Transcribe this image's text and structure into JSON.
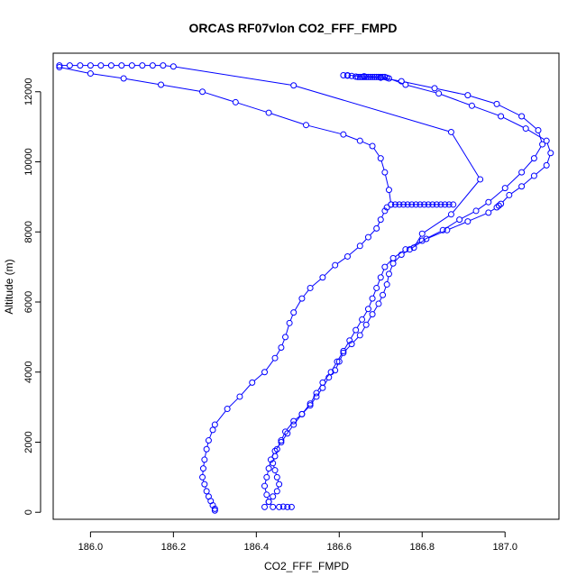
{
  "chart_data": {
    "type": "scatter",
    "title": "ORCAS RF07vlon CO2_FFF_FMPD",
    "xlabel": "CO2_FFF_FMPD",
    "ylabel": "Altitude (m)",
    "xlim": [
      185.91,
      187.13
    ],
    "ylim": [
      -200,
      13100
    ],
    "xticks": [
      186.0,
      186.2,
      186.4,
      186.6,
      186.8,
      187.0
    ],
    "xtick_labels": [
      "186.0",
      "186.2",
      "186.4",
      "186.6",
      "186.8",
      "187.0"
    ],
    "yticks": [
      0,
      2000,
      4000,
      6000,
      8000,
      10000,
      12000
    ],
    "ytick_labels": [
      "0",
      "2000",
      "4000",
      "6000",
      "8000",
      "10000",
      "12000"
    ],
    "grid": false,
    "marker": "open-circle",
    "color": "#0000ff",
    "series": [
      {
        "name": "profile-1",
        "line": true,
        "points": [
          [
            186.3,
            50
          ],
          [
            186.3,
            100
          ],
          [
            186.295,
            200
          ],
          [
            186.29,
            320
          ],
          [
            186.285,
            450
          ],
          [
            186.28,
            600
          ],
          [
            186.275,
            800
          ],
          [
            186.27,
            1000
          ],
          [
            186.272,
            1250
          ],
          [
            186.275,
            1500
          ],
          [
            186.28,
            1800
          ],
          [
            186.285,
            2050
          ],
          [
            186.295,
            2350
          ],
          [
            186.3,
            2500
          ],
          [
            186.33,
            2950
          ],
          [
            186.36,
            3300
          ],
          [
            186.39,
            3700
          ],
          [
            186.42,
            4000
          ],
          [
            186.445,
            4400
          ],
          [
            186.46,
            4700
          ],
          [
            186.47,
            5000
          ],
          [
            186.48,
            5400
          ],
          [
            186.49,
            5700
          ],
          [
            186.51,
            6100
          ],
          [
            186.53,
            6400
          ],
          [
            186.56,
            6700
          ],
          [
            186.59,
            7050
          ],
          [
            186.62,
            7300
          ],
          [
            186.65,
            7600
          ],
          [
            186.67,
            7850
          ],
          [
            186.69,
            8100
          ],
          [
            186.7,
            8350
          ],
          [
            186.71,
            8600
          ],
          [
            186.715,
            8700
          ],
          [
            186.725,
            8780
          ],
          [
            186.735,
            8780
          ],
          [
            186.745,
            8780
          ],
          [
            186.755,
            8780
          ],
          [
            186.765,
            8780
          ],
          [
            186.775,
            8780
          ],
          [
            186.785,
            8780
          ],
          [
            186.795,
            8780
          ],
          [
            186.805,
            8780
          ],
          [
            186.815,
            8780
          ],
          [
            186.825,
            8780
          ],
          [
            186.835,
            8780
          ],
          [
            186.845,
            8780
          ],
          [
            186.855,
            8780
          ],
          [
            186.865,
            8780
          ],
          [
            186.875,
            8780
          ],
          [
            186.725,
            8780
          ],
          [
            186.72,
            9200
          ],
          [
            186.71,
            9700
          ],
          [
            186.7,
            10100
          ],
          [
            186.68,
            10450
          ],
          [
            186.65,
            10600
          ],
          [
            186.61,
            10780
          ],
          [
            186.52,
            11050
          ],
          [
            186.43,
            11400
          ],
          [
            186.35,
            11700
          ],
          [
            186.27,
            12000
          ],
          [
            186.17,
            12200
          ],
          [
            186.08,
            12380
          ],
          [
            186.0,
            12520
          ],
          [
            185.925,
            12700
          ],
          [
            185.925,
            12750
          ],
          [
            185.95,
            12750
          ],
          [
            185.975,
            12750
          ],
          [
            186.0,
            12750
          ],
          [
            186.025,
            12750
          ],
          [
            186.05,
            12750
          ],
          [
            186.075,
            12750
          ],
          [
            186.1,
            12750
          ],
          [
            186.125,
            12750
          ],
          [
            186.15,
            12750
          ],
          [
            186.175,
            12750
          ],
          [
            186.2,
            12720
          ],
          [
            186.49,
            12180
          ],
          [
            186.87,
            10850
          ],
          [
            186.94,
            9500
          ],
          [
            186.87,
            8500
          ],
          [
            186.8,
            7950
          ],
          [
            186.78,
            7550
          ]
        ]
      },
      {
        "name": "profile-2",
        "line": true,
        "points": [
          [
            186.42,
            150
          ],
          [
            186.43,
            300
          ],
          [
            186.44,
            450
          ],
          [
            186.45,
            600
          ],
          [
            186.455,
            800
          ],
          [
            186.45,
            1000
          ],
          [
            186.445,
            1200
          ],
          [
            186.44,
            1400
          ],
          [
            186.445,
            1600
          ],
          [
            186.45,
            1800
          ],
          [
            186.46,
            2050
          ],
          [
            186.47,
            2300
          ],
          [
            186.49,
            2600
          ],
          [
            186.51,
            2800
          ],
          [
            186.53,
            3050
          ],
          [
            186.545,
            3300
          ],
          [
            186.56,
            3550
          ],
          [
            186.575,
            3850
          ],
          [
            186.59,
            4050
          ],
          [
            186.6,
            4300
          ],
          [
            186.61,
            4550
          ],
          [
            186.63,
            4800
          ],
          [
            186.65,
            5050
          ],
          [
            186.665,
            5350
          ],
          [
            186.68,
            5650
          ],
          [
            186.695,
            5950
          ],
          [
            186.705,
            6200
          ],
          [
            186.715,
            6500
          ],
          [
            186.72,
            6800
          ],
          [
            186.73,
            7100
          ],
          [
            186.75,
            7350
          ],
          [
            186.77,
            7500
          ],
          [
            186.81,
            7800
          ],
          [
            186.86,
            8050
          ],
          [
            186.91,
            8300
          ],
          [
            186.96,
            8550
          ],
          [
            186.98,
            8700
          ],
          [
            186.985,
            8750
          ],
          [
            186.99,
            8800
          ],
          [
            187.01,
            9050
          ],
          [
            187.04,
            9300
          ],
          [
            187.07,
            9600
          ],
          [
            187.1,
            9900
          ],
          [
            187.11,
            10250
          ],
          [
            187.1,
            10600
          ],
          [
            187.05,
            10950
          ],
          [
            186.99,
            11300
          ],
          [
            186.92,
            11600
          ],
          [
            186.84,
            11950
          ],
          [
            186.76,
            12200
          ],
          [
            186.72,
            12380
          ],
          [
            186.715,
            12400
          ],
          [
            186.71,
            12420
          ],
          [
            186.705,
            12420
          ],
          [
            186.7,
            12420
          ],
          [
            186.695,
            12420
          ],
          [
            186.69,
            12420
          ],
          [
            186.685,
            12420
          ],
          [
            186.68,
            12420
          ],
          [
            186.675,
            12420
          ],
          [
            186.67,
            12420
          ],
          [
            186.665,
            12420
          ],
          [
            186.66,
            12420
          ],
          [
            186.655,
            12420
          ],
          [
            186.65,
            12420
          ],
          [
            186.645,
            12420
          ],
          [
            186.64,
            12430
          ],
          [
            186.63,
            12450
          ],
          [
            186.62,
            12460
          ],
          [
            186.61,
            12470
          ]
        ]
      },
      {
        "name": "profile-3",
        "line": true,
        "points": [
          [
            186.62,
            12470
          ],
          [
            186.66,
            12440
          ],
          [
            186.7,
            12400
          ],
          [
            186.75,
            12300
          ],
          [
            186.83,
            12100
          ],
          [
            186.91,
            11900
          ],
          [
            186.98,
            11650
          ],
          [
            187.04,
            11300
          ],
          [
            187.08,
            10900
          ],
          [
            187.09,
            10500
          ],
          [
            187.07,
            10100
          ],
          [
            187.04,
            9700
          ],
          [
            187.0,
            9250
          ],
          [
            186.96,
            8850
          ],
          [
            186.93,
            8600
          ],
          [
            186.89,
            8350
          ],
          [
            186.85,
            8050
          ],
          [
            186.8,
            7750
          ],
          [
            186.76,
            7500
          ],
          [
            186.73,
            7250
          ],
          [
            186.71,
            7000
          ],
          [
            186.7,
            6700
          ],
          [
            186.69,
            6400
          ],
          [
            186.68,
            6100
          ],
          [
            186.67,
            5800
          ],
          [
            186.655,
            5500
          ],
          [
            186.64,
            5200
          ],
          [
            186.625,
            4900
          ],
          [
            186.61,
            4600
          ],
          [
            186.595,
            4300
          ],
          [
            186.58,
            4000
          ],
          [
            186.56,
            3700
          ],
          [
            186.545,
            3400
          ],
          [
            186.53,
            3100
          ],
          [
            186.51,
            2800
          ],
          [
            186.49,
            2500
          ],
          [
            186.475,
            2250
          ],
          [
            186.46,
            2000
          ],
          [
            186.445,
            1750
          ],
          [
            186.435,
            1500
          ],
          [
            186.43,
            1250
          ],
          [
            186.425,
            1000
          ],
          [
            186.42,
            750
          ],
          [
            186.425,
            500
          ],
          [
            186.43,
            300
          ],
          [
            186.44,
            150
          ],
          [
            186.455,
            150
          ],
          [
            186.465,
            160
          ],
          [
            186.475,
            150
          ],
          [
            186.485,
            150
          ]
        ]
      }
    ]
  }
}
